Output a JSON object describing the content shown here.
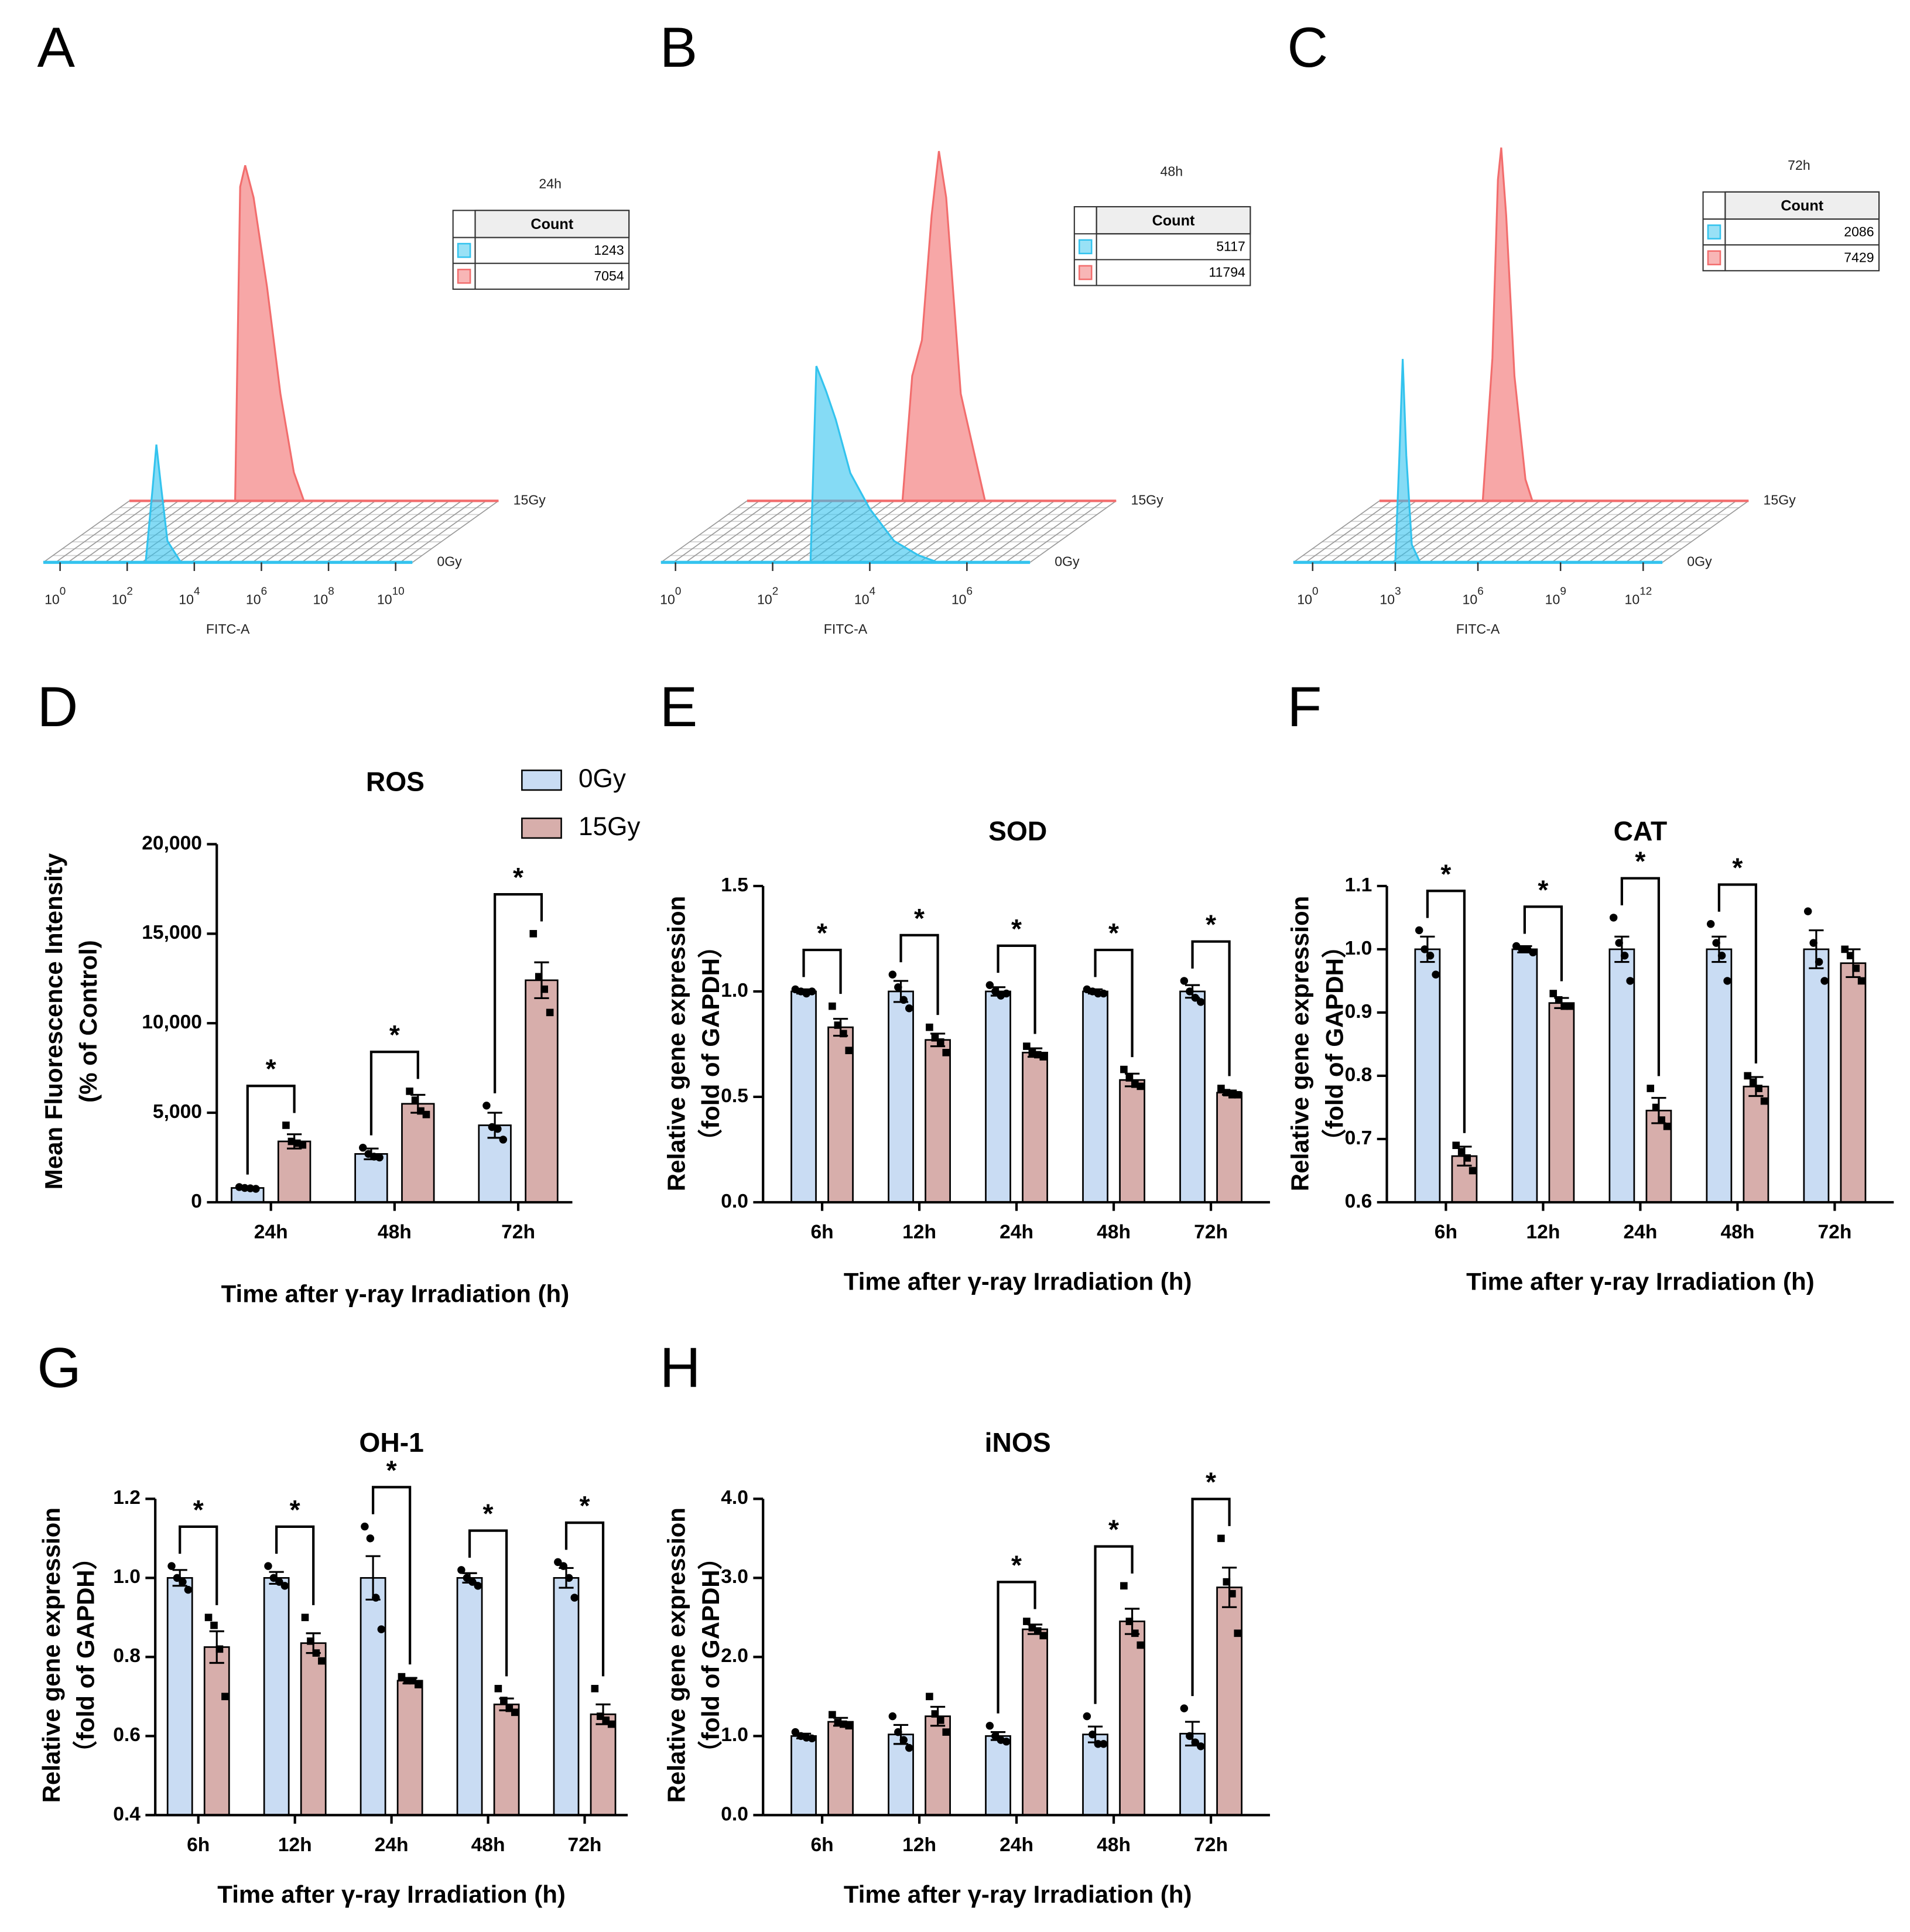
{
  "chart_data": [
    {
      "type": "flow",
      "panel": "A",
      "title": "24h",
      "table_header": "Count",
      "xlabel": "FITC-A",
      "xtick_base": "10",
      "xticks": [
        0,
        2,
        4,
        6,
        8,
        10
      ],
      "xlim": [
        -0.5,
        10.5
      ],
      "log_scale": true,
      "series": [
        {
          "name": "0Gy",
          "color": "#33c3ee",
          "count": 1243,
          "x": [
            2.55,
            2.75,
            2.87,
            3.0,
            3.2,
            3.6
          ],
          "values": [
            0,
            20,
            33,
            22,
            6,
            0
          ]
        },
        {
          "name": "15Gy",
          "color": "#f26d6d",
          "count": 7054,
          "x": [
            2.65,
            2.8,
            2.95,
            3.2,
            3.6,
            4.0,
            4.4,
            4.7
          ],
          "values": [
            0,
            88,
            94,
            85,
            60,
            30,
            8,
            0
          ]
        }
      ]
    },
    {
      "type": "flow",
      "panel": "B",
      "title": "48h",
      "table_header": "Count",
      "xlabel": "FITC-A",
      "xtick_base": "10",
      "xticks": [
        0,
        2,
        4,
        6
      ],
      "xlim": [
        -0.3,
        7.3
      ],
      "log_scale": true,
      "series": [
        {
          "name": "0Gy",
          "color": "#33c3ee",
          "count": 5117,
          "x": [
            2.78,
            2.9,
            3.1,
            3.3,
            3.6,
            4.0,
            4.5,
            5.0,
            5.4
          ],
          "values": [
            0,
            55,
            48,
            40,
            25,
            15,
            6,
            2,
            0
          ]
        },
        {
          "name": "15Gy",
          "color": "#f26d6d",
          "count": 11794,
          "x": [
            2.9,
            3.1,
            3.3,
            3.5,
            3.65,
            3.8,
            4.1,
            4.6
          ],
          "values": [
            0,
            35,
            45,
            80,
            98,
            85,
            30,
            0
          ]
        }
      ]
    },
    {
      "type": "flow",
      "panel": "C",
      "title": "72h",
      "table_header": "Count",
      "xlabel": "FITC-A",
      "xtick_base": "10",
      "xticks": [
        0,
        3,
        6,
        9,
        12
      ],
      "xlim": [
        -0.7,
        12.7
      ],
      "log_scale": true,
      "series": [
        {
          "name": "0Gy",
          "color": "#33c3ee",
          "count": 2086,
          "x": [
            3.0,
            3.15,
            3.27,
            3.4,
            3.6,
            3.9
          ],
          "values": [
            0,
            30,
            57,
            30,
            5,
            0
          ]
        },
        {
          "name": "15Gy",
          "color": "#f26d6d",
          "count": 7429,
          "x": [
            3.05,
            3.4,
            3.6,
            3.72,
            3.9,
            4.2,
            4.6,
            4.85
          ],
          "values": [
            0,
            40,
            90,
            99,
            80,
            35,
            6,
            0
          ]
        }
      ]
    },
    {
      "type": "bar",
      "panel": "D",
      "title": "ROS",
      "ylabel": [
        "Mean Fluorescence Intensity",
        "(% of Control)"
      ],
      "xlabel": "Time after γ-ray Irradiation (h)",
      "categories": [
        "24h",
        "48h",
        "72h"
      ],
      "legend": "top",
      "ylim": [
        0,
        20000
      ],
      "yticks": [
        0,
        {
          "value": 5000,
          "label": "5,000"
        },
        {
          "value": 10000,
          "label": "10,000"
        },
        {
          "value": 15000,
          "label": "15,000"
        },
        {
          "value": 20000,
          "label": "20,000"
        }
      ],
      "series": [
        {
          "name": "0Gy",
          "color": "#c9dcf3",
          "values": [
            800,
            2700,
            4300
          ],
          "errors": [
            60,
            300,
            700
          ],
          "points": [
            [
              850,
              800,
              780,
              750
            ],
            [
              3050,
              2700,
              2550,
              2500
            ],
            [
              5400,
              4200,
              4100,
              3500
            ]
          ]
        },
        {
          "name": "15Gy",
          "color": "#d7aeab",
          "values": [
            3400,
            5500,
            12400
          ],
          "errors": [
            400,
            500,
            1000
          ],
          "points": [
            [
              4300,
              3400,
              3300,
              3200
            ],
            [
              6200,
              5700,
              5100,
              4900
            ],
            [
              15000,
              12600,
              11900,
              10600
            ]
          ]
        }
      ],
      "significance": [
        "*",
        "*",
        "*"
      ]
    },
    {
      "type": "bar",
      "panel": "E",
      "title": "SOD",
      "ylabel": [
        "Relative gene expression",
        "（fold of GAPDH）"
      ],
      "xlabel": "Time after γ-ray Irradiation (h)",
      "categories": [
        "6h",
        "12h",
        "24h",
        "48h",
        "72h"
      ],
      "ylim": [
        0,
        1.5
      ],
      "yticks": [
        {
          "value": 0,
          "label": "0.0"
        },
        0.5,
        {
          "value": 1,
          "label": "1.0"
        },
        1.5
      ],
      "series": [
        {
          "color": "#c9dcf3",
          "values": [
            1.0,
            1.0,
            1.0,
            1.0,
            1.0
          ],
          "errors": [
            0.01,
            0.05,
            0.02,
            0.01,
            0.03
          ],
          "points": [
            [
              1.01,
              1.0,
              0.99,
              1.0
            ],
            [
              1.08,
              1.02,
              0.96,
              0.92
            ],
            [
              1.03,
              1.0,
              0.98,
              0.99
            ],
            [
              1.01,
              1.0,
              0.99,
              0.99
            ],
            [
              1.05,
              1.0,
              0.97,
              0.95
            ]
          ]
        },
        {
          "color": "#d7aeab",
          "values": [
            0.83,
            0.77,
            0.71,
            0.58,
            0.52
          ],
          "errors": [
            0.04,
            0.03,
            0.02,
            0.03,
            0.01
          ],
          "points": [
            [
              0.93,
              0.84,
              0.8,
              0.72
            ],
            [
              0.83,
              0.78,
              0.76,
              0.71
            ],
            [
              0.74,
              0.71,
              0.7,
              0.69
            ],
            [
              0.63,
              0.59,
              0.56,
              0.55
            ],
            [
              0.54,
              0.52,
              0.51,
              0.51
            ]
          ]
        }
      ],
      "significance": [
        "*",
        "*",
        "*",
        "*",
        "*"
      ]
    },
    {
      "type": "bar",
      "panel": "F",
      "title": "CAT",
      "ylabel": [
        "Relative gene expression",
        "（fold of GAPDH）"
      ],
      "xlabel": "Time after γ-ray Irradiation (h)",
      "categories": [
        "6h",
        "12h",
        "24h",
        "48h",
        "72h"
      ],
      "ylim": [
        0.6,
        1.1
      ],
      "yticks": [
        0.6,
        0.7,
        0.8,
        0.9,
        {
          "value": 1,
          "label": "1.0"
        },
        1.1
      ],
      "series": [
        {
          "color": "#c9dcf3",
          "values": [
            1.0,
            1.0,
            1.0,
            1.0,
            1.0
          ],
          "errors": [
            0.02,
            0.005,
            0.02,
            0.02,
            0.03
          ],
          "points": [
            [
              1.03,
              1.0,
              0.99,
              0.96
            ],
            [
              1.005,
              1.0,
              1.0,
              0.995
            ],
            [
              1.05,
              1.01,
              0.99,
              0.95
            ],
            [
              1.04,
              1.01,
              0.99,
              0.95
            ],
            [
              1.06,
              1.01,
              0.98,
              0.95
            ]
          ]
        },
        {
          "color": "#d7aeab",
          "values": [
            0.673,
            0.915,
            0.745,
            0.783,
            0.978
          ],
          "errors": [
            0.015,
            0.008,
            0.02,
            0.015,
            0.022
          ],
          "points": [
            [
              0.69,
              0.68,
              0.67,
              0.65
            ],
            [
              0.93,
              0.92,
              0.91,
              0.91
            ],
            [
              0.78,
              0.75,
              0.73,
              0.72
            ],
            [
              0.8,
              0.79,
              0.78,
              0.76
            ],
            [
              1.0,
              0.99,
              0.97,
              0.95
            ]
          ]
        }
      ],
      "significance": [
        "*",
        "*",
        "*",
        "*",
        null
      ]
    },
    {
      "type": "bar",
      "panel": "G",
      "title": "OH-1",
      "ylabel": [
        "Relative gene expression",
        "（fold of GAPDH）"
      ],
      "xlabel": "Time after γ-ray Irradiation (h)",
      "categories": [
        "6h",
        "12h",
        "24h",
        "48h",
        "72h"
      ],
      "ylim": [
        0.4,
        1.2
      ],
      "yticks": [
        0.4,
        0.6,
        0.8,
        {
          "value": 1,
          "label": "1.0"
        },
        1.2
      ],
      "series": [
        {
          "color": "#c9dcf3",
          "values": [
            1.0,
            1.0,
            1.0,
            1.0,
            1.0
          ],
          "errors": [
            0.02,
            0.015,
            0.055,
            0.012,
            0.025
          ],
          "points": [
            [
              1.03,
              1.0,
              0.99,
              0.97
            ],
            [
              1.03,
              1.0,
              0.99,
              0.98
            ],
            [
              1.13,
              1.1,
              0.95,
              0.87
            ],
            [
              1.02,
              1.0,
              0.99,
              0.98
            ],
            [
              1.04,
              1.03,
              1.0,
              0.95
            ]
          ]
        },
        {
          "color": "#d7aeab",
          "values": [
            0.825,
            0.835,
            0.74,
            0.68,
            0.655
          ],
          "errors": [
            0.04,
            0.025,
            0.007,
            0.015,
            0.025
          ],
          "points": [
            [
              0.9,
              0.88,
              0.82,
              0.7
            ],
            [
              0.9,
              0.84,
              0.81,
              0.79
            ],
            [
              0.75,
              0.74,
              0.74,
              0.73
            ],
            [
              0.72,
              0.69,
              0.67,
              0.66
            ],
            [
              0.72,
              0.65,
              0.64,
              0.63
            ]
          ]
        }
      ],
      "significance": [
        "*",
        "*",
        "*",
        "*",
        "*"
      ]
    },
    {
      "type": "bar",
      "panel": "H",
      "title": "iNOS",
      "ylabel": [
        "Relative gene expression",
        "（fold of GAPDH）"
      ],
      "xlabel": "Time after γ-ray Irradiation (h)",
      "categories": [
        "6h",
        "12h",
        "24h",
        "48h",
        "72h"
      ],
      "ylim": [
        0,
        4
      ],
      "yticks": [
        {
          "value": 0,
          "label": "0.0"
        },
        {
          "value": 1,
          "label": "1.0"
        },
        {
          "value": 2,
          "label": "2.0"
        },
        {
          "value": 3,
          "label": "3.0"
        },
        {
          "value": 4,
          "label": "4.0"
        }
      ],
      "series": [
        {
          "color": "#c9dcf3",
          "values": [
            1.0,
            1.02,
            1.0,
            1.02,
            1.03
          ],
          "errors": [
            0.03,
            0.12,
            0.05,
            0.1,
            0.15
          ],
          "points": [
            [
              1.05,
              1.0,
              0.98,
              0.97
            ],
            [
              1.25,
              1.05,
              0.95,
              0.85
            ],
            [
              1.13,
              1.0,
              0.95,
              0.93
            ],
            [
              1.25,
              1.02,
              0.9,
              0.9
            ],
            [
              1.35,
              1.0,
              0.92,
              0.87
            ]
          ]
        },
        {
          "color": "#d7aeab",
          "values": [
            1.18,
            1.25,
            2.35,
            2.45,
            2.88
          ],
          "errors": [
            0.05,
            0.12,
            0.06,
            0.16,
            0.25
          ],
          "points": [
            [
              1.27,
              1.17,
              1.15,
              1.13
            ],
            [
              1.5,
              1.28,
              1.2,
              1.05
            ],
            [
              2.45,
              2.37,
              2.33,
              2.27
            ],
            [
              2.9,
              2.45,
              2.3,
              2.15
            ],
            [
              3.5,
              2.95,
              2.8,
              2.3
            ]
          ]
        }
      ],
      "significance": [
        null,
        null,
        "*",
        "*",
        "*"
      ]
    }
  ]
}
